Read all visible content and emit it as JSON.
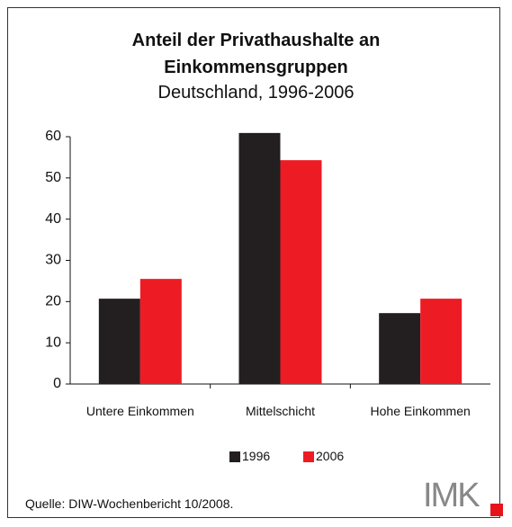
{
  "chart_data": {
    "type": "bar",
    "title": "Anteil der Privathaushalte an\nEinkommensgruppen",
    "subtitle": "Deutschland, 1996-2006",
    "categories": [
      "Untere Einkommen",
      "Mittelschicht",
      "Hohe Einkommen"
    ],
    "series": [
      {
        "name": "1996",
        "color": "#231f20",
        "values": [
          20.7,
          60.9,
          17.2
        ]
      },
      {
        "name": "2006",
        "color": "#ed1c24",
        "values": [
          25.5,
          54.3,
          20.7
        ]
      }
    ],
    "ylim": [
      0,
      60
    ],
    "yticks": [
      0,
      10,
      20,
      30,
      40,
      50,
      60
    ],
    "grid": false,
    "source": "Quelle: DIW-Wochenbericht 10/2008.",
    "logo": "IMK"
  }
}
